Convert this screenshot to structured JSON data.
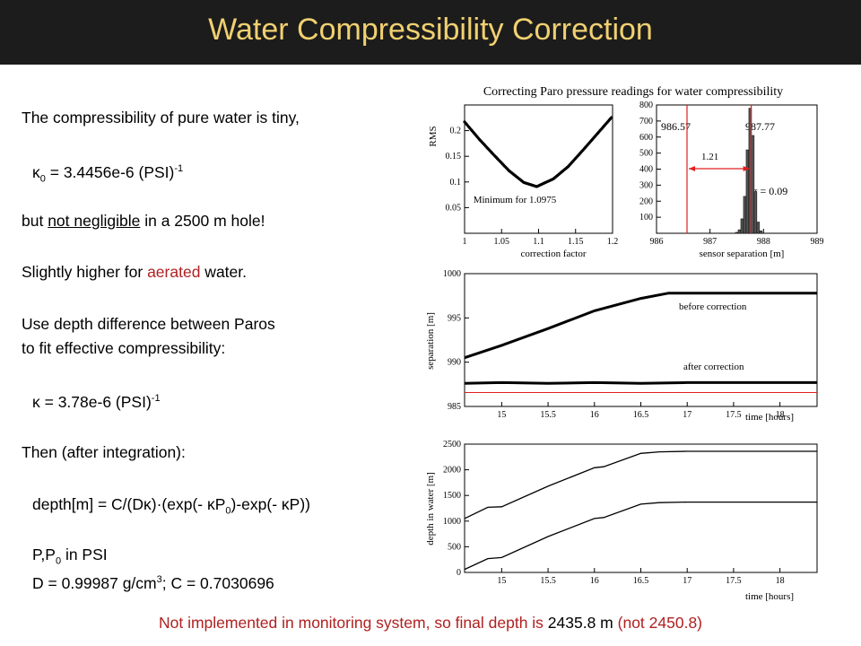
{
  "title": "Water Compressibility Correction",
  "text": {
    "l1": "The compressibility of pure water is tiny,",
    "l2_a": "κ",
    "l2_sub": "0",
    "l2_b": " = 3.4456e-6 (PSI)",
    "l2_sup": "-1",
    "l3_a": "but ",
    "l3_ul": "not negligible",
    "l3_b": " in a 2500 m hole!",
    "l4_a": "Slightly higher for ",
    "l4_red": "aerated",
    "l4_b": " water.",
    "l5": "Use depth difference between Paros",
    "l6": "to fit effective compressibility:",
    "l7_a": "κ = 3.78e-6 (PSI)",
    "l7_sup": "-1",
    "l8": "Then (after integration):",
    "l9_a": "depth[m] = C/(Dκ)·(exp(- κP",
    "l9_sub": "0",
    "l9_b": ")-exp(- κP))",
    "l10_a": "P,P",
    "l10_sub": "0",
    "l10_b": " in PSI",
    "l11_a": "D = 0.99987 g/cm",
    "l11_sup": "3",
    "l11_b": "; C = 0.7030696"
  },
  "footer": {
    "a": "Not implemented in monitoring system, so final depth is ",
    "b": "2435.8 m",
    "c": " (not 2450.8)"
  },
  "colors": {
    "title": "#f0d070",
    "title_bar": "#1c1c1c",
    "red": "#b02020",
    "marker": "#e02020"
  },
  "chart_data": [
    {
      "type": "line",
      "title": "Correcting Paro pressure readings for water compressibility",
      "xlabel": "correction factor",
      "ylabel": "RMS",
      "xlim": [
        1,
        1.2
      ],
      "ylim": [
        0,
        0.25
      ],
      "x_ticks": [
        "1",
        "1.05",
        "1.1",
        "1.15",
        "1.2"
      ],
      "y_ticks": [
        "0.05",
        "0.1",
        "0.15",
        "0.2"
      ],
      "annotation": "Minimum for 1.0975",
      "series": [
        {
          "x": [
            1.0,
            1.02,
            1.04,
            1.06,
            1.08,
            1.0975,
            1.12,
            1.14,
            1.16,
            1.18,
            1.2
          ],
          "values": [
            0.217,
            0.183,
            0.152,
            0.122,
            0.099,
            0.091,
            0.106,
            0.13,
            0.162,
            0.195,
            0.228
          ]
        }
      ]
    },
    {
      "type": "bar",
      "xlabel": "sensor separation [m]",
      "xlim": [
        986,
        989
      ],
      "ylim": [
        0,
        800
      ],
      "x_ticks": [
        "986",
        "987",
        "988",
        "989"
      ],
      "y_ticks": [
        "100",
        "200",
        "300",
        "400",
        "500",
        "600",
        "700",
        "800"
      ],
      "markers": [
        986.57,
        987.77
      ],
      "annotations": [
        "986.57",
        "987.77",
        "1.21",
        "σ = 0.09"
      ],
      "bins": [
        987.5,
        987.55,
        987.6,
        987.65,
        987.7,
        987.75,
        987.8,
        987.85,
        987.9,
        987.95
      ],
      "values": [
        6,
        22,
        90,
        230,
        520,
        780,
        610,
        260,
        70,
        15
      ]
    },
    {
      "type": "line",
      "xlabel": "time [hours]",
      "ylabel": "separation [m]",
      "xlim": [
        14.6,
        18.4
      ],
      "ylim": [
        985,
        1000
      ],
      "x_ticks": [
        "15",
        "15.5",
        "16",
        "16.5",
        "17",
        "17.5",
        "18"
      ],
      "y_ticks": [
        "985",
        "990",
        "995",
        "1000"
      ],
      "reference_line": 986.57,
      "series": [
        {
          "name": "before correction",
          "x": [
            14.6,
            15,
            15.5,
            16,
            16.5,
            16.8,
            17,
            18.4
          ],
          "values": [
            990.5,
            991.9,
            993.8,
            995.8,
            997.2,
            997.8,
            997.8,
            997.8
          ]
        },
        {
          "name": "after correction",
          "x": [
            14.6,
            15,
            15.5,
            16,
            16.5,
            17,
            17.5,
            18,
            18.4
          ],
          "values": [
            987.6,
            987.7,
            987.6,
            987.7,
            987.6,
            987.7,
            987.7,
            987.7,
            987.7
          ]
        }
      ]
    },
    {
      "type": "line",
      "xlabel": "time [hours]",
      "ylabel": "depth in water [m]",
      "xlim": [
        14.6,
        18.4
      ],
      "ylim": [
        0,
        2500
      ],
      "x_ticks": [
        "15",
        "15.5",
        "16",
        "16.5",
        "17",
        "17.5",
        "18"
      ],
      "y_ticks": [
        "0",
        "500",
        "1000",
        "1500",
        "2000",
        "2500"
      ],
      "series": [
        {
          "x": [
            14.6,
            14.85,
            15.0,
            15.5,
            16.0,
            16.1,
            16.5,
            16.7,
            17.0,
            18.4
          ],
          "values": [
            1050,
            1270,
            1280,
            1680,
            2040,
            2060,
            2320,
            2350,
            2360,
            2360
          ]
        },
        {
          "x": [
            14.6,
            14.85,
            15.0,
            15.5,
            16.0,
            16.1,
            16.5,
            16.7,
            17.0,
            18.4
          ],
          "values": [
            60,
            270,
            290,
            700,
            1050,
            1070,
            1330,
            1360,
            1370,
            1370
          ]
        }
      ]
    }
  ]
}
